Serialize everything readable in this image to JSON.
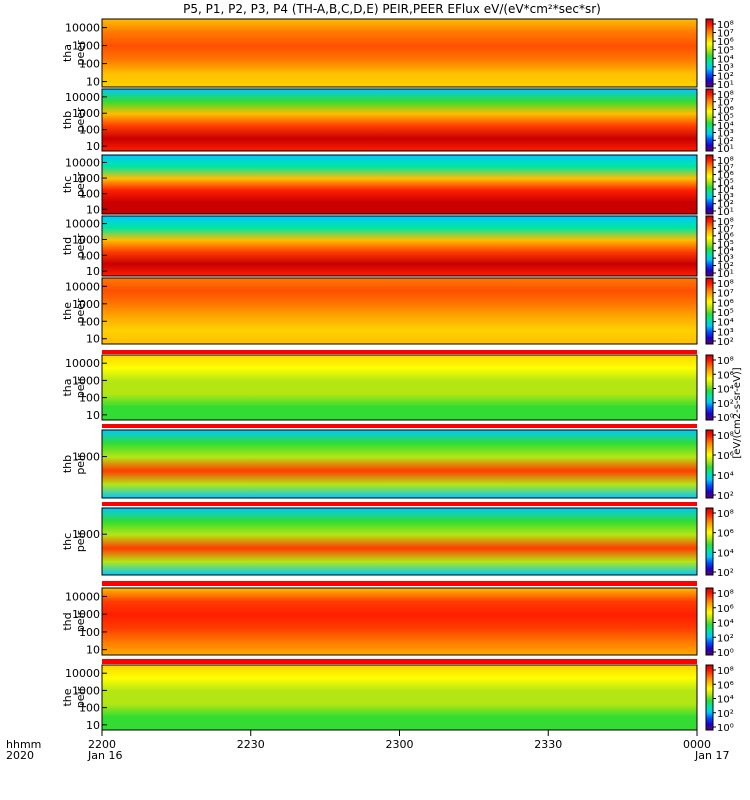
{
  "chart_data": {
    "type": "heatmap",
    "title": "P5, P1, P2, P3, P4 (TH-A,B,C,D,E) PEIR,PEER EFlux eV/(eV*cm²*sec*sr)",
    "x_axis": {
      "ticks": [
        "2200",
        "2230",
        "2300",
        "2330",
        "0000"
      ],
      "date_labels": [
        "Jan 16",
        "Jan 17"
      ],
      "corner_labels": [
        "hhmm",
        "2020"
      ],
      "range_minutes": [
        0,
        120
      ]
    },
    "colorbar_label": "[eV/(cm2-s-sr-eV)]",
    "colorbar_units": "eV/(eV*cm²*sec*sr)",
    "panels": [
      {
        "probe": "tha",
        "species": "peer",
        "label": [
          "tha",
          "peer"
        ],
        "yticks": [
          "10000",
          "1000",
          "100",
          "10"
        ],
        "ytick_exp": [
          4,
          3,
          2,
          1
        ],
        "ylim": [
          5,
          30000
        ],
        "cbar_ticks": [
          "10⁸",
          "10⁷",
          "10⁶",
          "10⁵",
          "10⁴",
          "10³",
          "10²",
          "10¹"
        ],
        "cbar_exp": [
          8,
          7,
          6,
          5,
          4,
          3,
          2,
          1
        ]
      },
      {
        "probe": "thb",
        "species": "peer",
        "label": [
          "thb",
          "peer"
        ],
        "yticks": [
          "10000",
          "1000",
          "100",
          "10"
        ],
        "ytick_exp": [
          4,
          3,
          2,
          1
        ],
        "ylim": [
          5,
          30000
        ],
        "cbar_ticks": [
          "10⁸",
          "10⁷",
          "10⁶",
          "10⁵",
          "10⁴",
          "10³",
          "10²",
          "10¹"
        ],
        "cbar_exp": [
          8,
          7,
          6,
          5,
          4,
          3,
          2,
          1
        ]
      },
      {
        "probe": "thc",
        "species": "peer",
        "label": [
          "thc",
          "peer"
        ],
        "yticks": [
          "10000",
          "1000",
          "100",
          "10"
        ],
        "ytick_exp": [
          4,
          3,
          2,
          1
        ],
        "ylim": [
          5,
          30000
        ],
        "cbar_ticks": [
          "10⁸",
          "10⁷",
          "10⁶",
          "10⁵",
          "10⁴",
          "10³",
          "10²",
          "10¹"
        ],
        "cbar_exp": [
          8,
          7,
          6,
          5,
          4,
          3,
          2,
          1
        ]
      },
      {
        "probe": "thd",
        "species": "peer",
        "label": [
          "thd",
          "peer"
        ],
        "yticks": [
          "10000",
          "1000",
          "100",
          "10"
        ],
        "ytick_exp": [
          4,
          3,
          2,
          1
        ],
        "ylim": [
          5,
          30000
        ],
        "cbar_ticks": [
          "10⁸",
          "10⁷",
          "10⁶",
          "10⁵",
          "10⁴",
          "10³",
          "10²",
          "10¹"
        ],
        "cbar_exp": [
          8,
          7,
          6,
          5,
          4,
          3,
          2,
          1
        ]
      },
      {
        "probe": "the",
        "species": "peer",
        "label": [
          "the",
          "peer"
        ],
        "yticks": [
          "10000",
          "1000",
          "100",
          "10"
        ],
        "ytick_exp": [
          4,
          3,
          2,
          1
        ],
        "ylim": [
          5,
          30000
        ],
        "cbar_ticks": [
          "10⁸",
          "10⁷",
          "10⁶",
          "10⁵",
          "10⁴",
          "10³",
          "10²"
        ],
        "cbar_exp": [
          8,
          7,
          6,
          5,
          4,
          3,
          2
        ]
      },
      {
        "probe": "tha",
        "species": "peir",
        "label": [
          "tha",
          "peir"
        ],
        "yticks": [
          "10000",
          "1000",
          "100",
          "10"
        ],
        "ytick_exp": [
          4,
          3,
          2,
          1
        ],
        "ylim": [
          5,
          30000
        ],
        "cbar_ticks": [
          "10⁸",
          "10⁶",
          "10⁴",
          "10²",
          "10⁰"
        ],
        "cbar_exp": [
          8,
          6,
          4,
          2,
          0
        ]
      },
      {
        "probe": "thb",
        "species": "peir",
        "label": [
          "thb",
          "peir"
        ],
        "yticks": [
          "1000"
        ],
        "ytick_exp": [
          3
        ],
        "ylim": [
          5,
          30000
        ],
        "cbar_ticks": [
          "10⁸",
          "10⁶",
          "10⁴",
          "10²"
        ],
        "cbar_exp": [
          8,
          6,
          4,
          2
        ]
      },
      {
        "probe": "thc",
        "species": "peir",
        "label": [
          "thc",
          "peir"
        ],
        "yticks": [
          "1000"
        ],
        "ytick_exp": [
          3
        ],
        "ylim": [
          5,
          30000
        ],
        "cbar_ticks": [
          "10⁸",
          "10⁶",
          "10⁴",
          "10²"
        ],
        "cbar_exp": [
          8,
          6,
          4,
          2
        ]
      },
      {
        "probe": "thd",
        "species": "peir",
        "label": [
          "thd",
          "peir"
        ],
        "yticks": [
          "10000",
          "1000",
          "100",
          "10"
        ],
        "ytick_exp": [
          4,
          3,
          2,
          1
        ],
        "ylim": [
          5,
          30000
        ],
        "cbar_ticks": [
          "10⁸",
          "10⁶",
          "10⁴",
          "10²",
          "10⁰"
        ],
        "cbar_exp": [
          8,
          6,
          4,
          2,
          0
        ]
      },
      {
        "probe": "the",
        "species": "peir",
        "label": [
          "the",
          "peir"
        ],
        "yticks": [
          "10000",
          "1000",
          "100",
          "10"
        ],
        "ytick_exp": [
          4,
          3,
          2,
          1
        ],
        "ylim": [
          5,
          30000
        ],
        "cbar_ticks": [
          "10⁸",
          "10⁶",
          "10⁴",
          "10²",
          "10⁰"
        ],
        "cbar_exp": [
          8,
          6,
          4,
          2,
          0
        ]
      }
    ]
  },
  "colors": {
    "spectrum": [
      "#5a0078",
      "#1e00c8",
      "#0050ff",
      "#00c8ff",
      "#00e6a0",
      "#32dc32",
      "#b4e614",
      "#ffff00",
      "#ffbe00",
      "#ff7800",
      "#ff1e00",
      "#c80000"
    ],
    "flag_bar": "#ff0000"
  }
}
